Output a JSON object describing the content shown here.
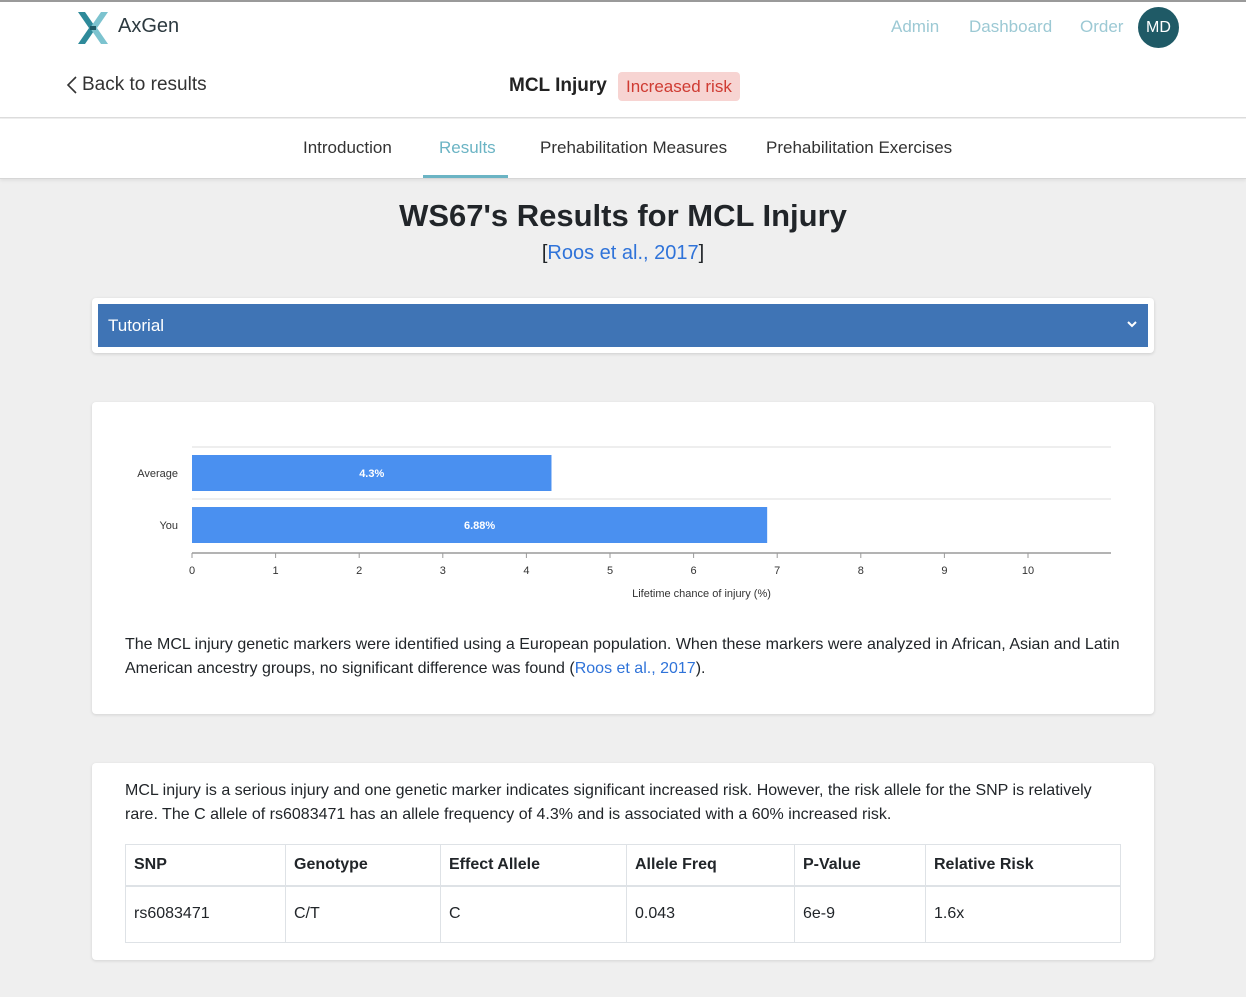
{
  "app": {
    "brand": "AxGen"
  },
  "nav": {
    "admin": "Admin",
    "dashboard": "Dashboard",
    "order": "Order",
    "avatar_initials": "MD"
  },
  "header": {
    "back_label": "Back to results",
    "condition": "MCL Injury",
    "risk_badge": "Increased risk"
  },
  "tabs": [
    {
      "label": "Introduction"
    },
    {
      "label": "Results"
    },
    {
      "label": "Prehabilitation Measures"
    },
    {
      "label": "Prehabilitation Exercises"
    }
  ],
  "active_tab": "Results",
  "page": {
    "title": "WS67's Results for MCL Injury",
    "citation_open": "[",
    "citation_link": "Roos et al., 2017",
    "citation_close": "]"
  },
  "tutorial": {
    "label": "Tutorial"
  },
  "chart_data": {
    "type": "bar",
    "orientation": "horizontal",
    "categories": [
      "Average",
      "You"
    ],
    "values": [
      4.3,
      6.88
    ],
    "value_labels": [
      "4.3%",
      "6.88%"
    ],
    "xlabel": "Lifetime chance of injury (%)",
    "xlim": [
      0,
      11
    ],
    "x_ticks": [
      0,
      1,
      2,
      3,
      4,
      5,
      6,
      7,
      8,
      9,
      10
    ],
    "grid": "horizontal category separators",
    "bar_color": "#4a90f0"
  },
  "chart_note": {
    "text": "The MCL injury genetic markers were identified using a European population. When these markers were analyzed in African, Asian and Latin American ancestry groups, no significant difference was found (",
    "link": "Roos et al., 2017",
    "end": ")."
  },
  "snp_section": {
    "text": "MCL injury is a serious injury and one genetic marker indicates significant increased risk. However, the risk allele for the SNP is relatively rare. The C allele of rs6083471 has an allele frequency of 4.3% and is associated with a 60% increased risk.",
    "columns": [
      "SNP",
      "Genotype",
      "Effect Allele",
      "Allele Freq",
      "P-Value",
      "Relative Risk"
    ],
    "rows": [
      [
        "rs6083471",
        "C/T",
        "C",
        "0.043",
        "6e-9",
        "1.6x"
      ]
    ]
  },
  "colors": {
    "header_link": "#9cc9d4",
    "active_tab": "#6bb4c4",
    "avatar_bg": "#1f5a66",
    "tutorial_bg": "#3f74b5",
    "badge_bg": "#f7d4d2",
    "badge_text": "#cf3b32",
    "link": "#2f73d9"
  }
}
